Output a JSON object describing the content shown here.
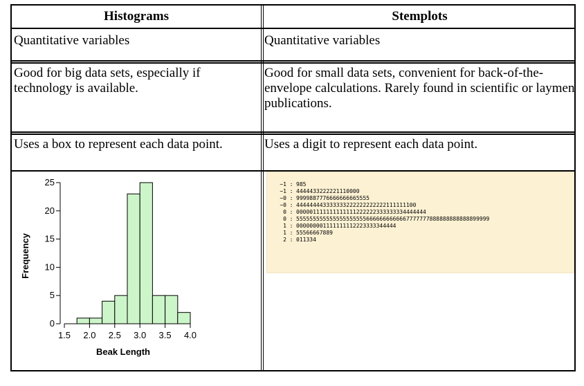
{
  "table": {
    "headers": [
      "Histograms",
      "Stemplots"
    ],
    "rows": [
      [
        "Quantitative variables",
        "Quantitative variables"
      ],
      [
        "Good for big data sets, especially if technology is available.",
        "Good for small data sets, convenient for back-of-the-envelope calculations.  Rarely found in scientific or laymen publications."
      ],
      [
        "Uses a box to represent each data point.",
        "Uses a digit to represent each data point."
      ]
    ]
  },
  "chart_data": {
    "type": "bar",
    "title": "",
    "xlabel": "Beak Length",
    "ylabel": "Frequency",
    "bin_edges": [
      1.5,
      1.75,
      2.0,
      2.25,
      2.5,
      2.75,
      3.0,
      3.25,
      3.5,
      3.75,
      4.0
    ],
    "values": [
      0,
      1,
      1,
      4,
      5,
      23,
      25,
      5,
      5,
      2
    ],
    "xlim": [
      1.5,
      4.0
    ],
    "ylim": [
      0,
      25
    ],
    "x_ticks": [
      "1.5",
      "2.0",
      "2.5",
      "3.0",
      "3.5",
      "4.0"
    ],
    "y_ticks": [
      "0",
      "5",
      "10",
      "15",
      "20",
      "25"
    ],
    "bar_color": "#ccf5c9",
    "bar_edge_color": "#000000",
    "grid": false,
    "legend": "none"
  },
  "stemplot": {
    "rows": [
      {
        "stem": "−1",
        "leaves": "985"
      },
      {
        "stem": "−1",
        "leaves": "4444433222221110000"
      },
      {
        "stem": "−0",
        "leaves": "9999887776666666665555"
      },
      {
        "stem": "−0",
        "leaves": "444444443333333222222222222111111100"
      },
      {
        "stem": "0",
        "leaves": "000001111111111111222222333333334444444"
      },
      {
        "stem": "0",
        "leaves": "5555555555555555555556666666666667777777888888888888899999"
      },
      {
        "stem": "1",
        "leaves": "000000001111111112223333344444"
      },
      {
        "stem": "1",
        "leaves": "55566667889"
      },
      {
        "stem": "2",
        "leaves": "011334"
      }
    ]
  }
}
